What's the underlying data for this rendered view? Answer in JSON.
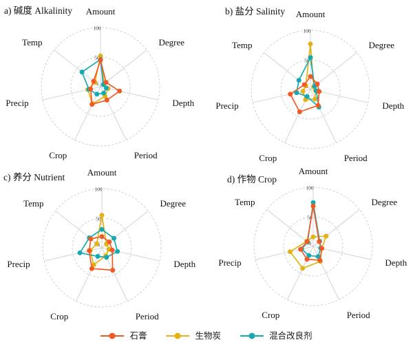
{
  "figure": {
    "background": "#ffffff",
    "text_color": "#111111",
    "grid_color": "#c4c4c4",
    "spoke_color": "#c9c9c9",
    "tick_color": "#3c3c3c"
  },
  "legend": {
    "position": "bottom",
    "items": [
      {
        "label": "石膏",
        "color": "#f15a24"
      },
      {
        "label": "生物炭",
        "color": "#e2b216"
      },
      {
        "label": "混合改良剂",
        "color": "#16a9b2"
      }
    ]
  },
  "chart_data": [
    {
      "type": "radar",
      "id": "alkalinity",
      "title": "a) 碱度 Alkalinity",
      "axes": [
        "Amount",
        "Degree",
        "Depth",
        "Period",
        "Crop",
        "Precip",
        "Temp"
      ],
      "rlim": [
        0,
        100
      ],
      "rticks": [
        0,
        50,
        100
      ],
      "grid": "dashed-circles",
      "series": [
        {
          "name": "石膏",
          "color": "#f15a24",
          "values": [
            45,
            12,
            33,
            25,
            33,
            17,
            15
          ]
        },
        {
          "name": "生物炭",
          "color": "#e2b216",
          "values": [
            52,
            8,
            13,
            18,
            32,
            22,
            12
          ]
        },
        {
          "name": "混合改良剂",
          "color": "#16a9b2",
          "values": [
            46,
            6,
            10,
            12,
            14,
            20,
            40
          ]
        }
      ]
    },
    {
      "type": "radar",
      "id": "salinity",
      "title": "b) 盐分 Salinity",
      "axes": [
        "Amount",
        "Degree",
        "Depth",
        "Period",
        "Crop",
        "Precip",
        "Temp"
      ],
      "rlim": [
        0,
        100
      ],
      "rticks": [
        0,
        50,
        100
      ],
      "grid": "dashed-circles",
      "series": [
        {
          "name": "石膏",
          "color": "#f15a24",
          "values": [
            22,
            15,
            15,
            30,
            42,
            35,
            13
          ]
        },
        {
          "name": "生物炭",
          "color": "#e2b216",
          "values": [
            77,
            7,
            9,
            18,
            19,
            13,
            10
          ]
        },
        {
          "name": "混合改良剂",
          "color": "#16a9b2",
          "values": [
            54,
            9,
            10,
            33,
            13,
            24,
            25
          ]
        }
      ]
    },
    {
      "type": "radar",
      "id": "nutrient",
      "title": "c) 养分 Nutrient",
      "axes": [
        "Amount",
        "Degree",
        "Depth",
        "Period",
        "Crop",
        "Precip",
        "Temp"
      ],
      "rlim": [
        0,
        100
      ],
      "rticks": [
        0,
        50,
        100
      ],
      "grid": "dashed-circles",
      "series": [
        {
          "name": "石膏",
          "color": "#f15a24",
          "values": [
            19,
            16,
            18,
            42,
            39,
            22,
            24
          ]
        },
        {
          "name": "生物炭",
          "color": "#e2b216",
          "values": [
            55,
            10,
            12,
            15,
            32,
            20,
            11
          ]
        },
        {
          "name": "混合改良剂",
          "color": "#16a9b2",
          "values": [
            31,
            26,
            27,
            18,
            16,
            38,
            27
          ]
        }
      ]
    },
    {
      "type": "radar",
      "id": "crop",
      "title": "d) 作物 Crop",
      "axes": [
        "Amount",
        "Degree",
        "Depth",
        "Period",
        "Crop",
        "Precip",
        "Temp"
      ],
      "rlim": [
        0,
        100
      ],
      "rticks": [
        0,
        50,
        100
      ],
      "grid": "dashed-circles",
      "series": [
        {
          "name": "石膏",
          "color": "#f15a24",
          "values": [
            68,
            13,
            15,
            26,
            24,
            22,
            13
          ]
        },
        {
          "name": "生物炭",
          "color": "#e2b216",
          "values": [
            16,
            28,
            15,
            28,
            41,
            40,
            14
          ]
        },
        {
          "name": "混合改良剂",
          "color": "#16a9b2",
          "values": [
            74,
            14,
            13,
            19,
            17,
            20,
            12
          ]
        }
      ]
    }
  ]
}
